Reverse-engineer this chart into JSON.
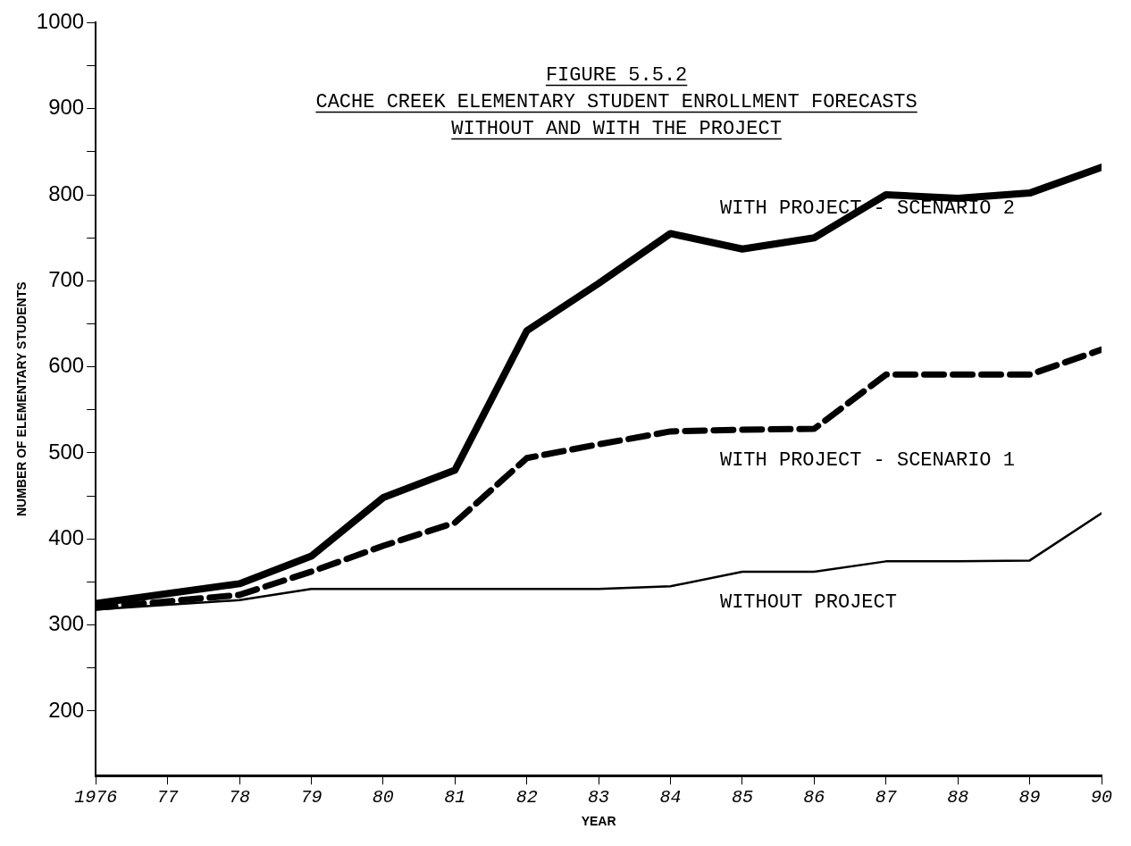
{
  "chart_data": {
    "type": "line",
    "title": "FIGURE 5.5.2",
    "subtitle": "CACHE CREEK ELEMENTARY STUDENT ENROLLMENT FORECASTS WITHOUT AND WITH THE PROJECT",
    "xlabel": "YEAR",
    "ylabel": "NUMBER OF ELEMENTARY STUDENTS",
    "x": [
      1976,
      1978,
      1979,
      1980,
      1981,
      1982,
      1983,
      1984,
      1985,
      1986,
      1987,
      1988,
      1989,
      1990
    ],
    "series": [
      {
        "name": "WITH PROJECT - SCENARIO 2",
        "color": "#000000",
        "line_style": "solid",
        "values": [
          325,
          348,
          380,
          448,
          480,
          642,
          697,
          755,
          737,
          750,
          800,
          796,
          802,
          832
        ]
      },
      {
        "name": "WITH PROJECT - SCENARIO 1",
        "color": "#000000",
        "line_style": "dashed",
        "values": [
          320,
          335,
          362,
          392,
          419,
          494,
          510,
          525,
          527,
          528,
          591,
          591,
          591,
          620
        ]
      },
      {
        "name": "WITHOUT PROJECT",
        "color": "#000000",
        "line_style": "solid",
        "values": [
          318,
          329,
          342,
          342,
          342,
          342,
          342,
          345,
          362,
          362,
          374,
          374,
          375,
          430
        ]
      }
    ],
    "xlim": [
      1976,
      1990
    ],
    "xticks": [
      1976,
      {
        "value": 1977,
        "label": "77"
      },
      {
        "value": 1978,
        "label": "78"
      },
      {
        "value": 1979,
        "label": "79"
      },
      {
        "value": 1980,
        "label": "80"
      },
      {
        "value": 1981,
        "label": "81"
      },
      {
        "value": 1982,
        "label": "82"
      },
      {
        "value": 1983,
        "label": "83"
      },
      {
        "value": 1984,
        "label": "84"
      },
      {
        "value": 1985,
        "label": "85"
      },
      {
        "value": 1986,
        "label": "86"
      },
      {
        "value": 1987,
        "label": "87"
      },
      {
        "value": 1988,
        "label": "88"
      },
      {
        "value": 1989,
        "label": "89"
      },
      {
        "value": 1990,
        "label": "90"
      }
    ],
    "ylim": [
      125,
      1000
    ],
    "yticks": [
      200,
      {
        "value": 250,
        "label": null
      },
      300,
      {
        "value": 350,
        "label": null
      },
      400,
      {
        "value": 450,
        "label": null
      },
      500,
      {
        "value": 550,
        "label": null
      },
      600,
      {
        "value": 650,
        "label": null
      },
      700,
      {
        "value": 750,
        "label": null
      },
      800,
      {
        "value": 850,
        "label": null
      },
      900,
      {
        "value": 950,
        "label": null
      },
      1000
    ],
    "grid": false,
    "legend": false,
    "marker": "none"
  }
}
